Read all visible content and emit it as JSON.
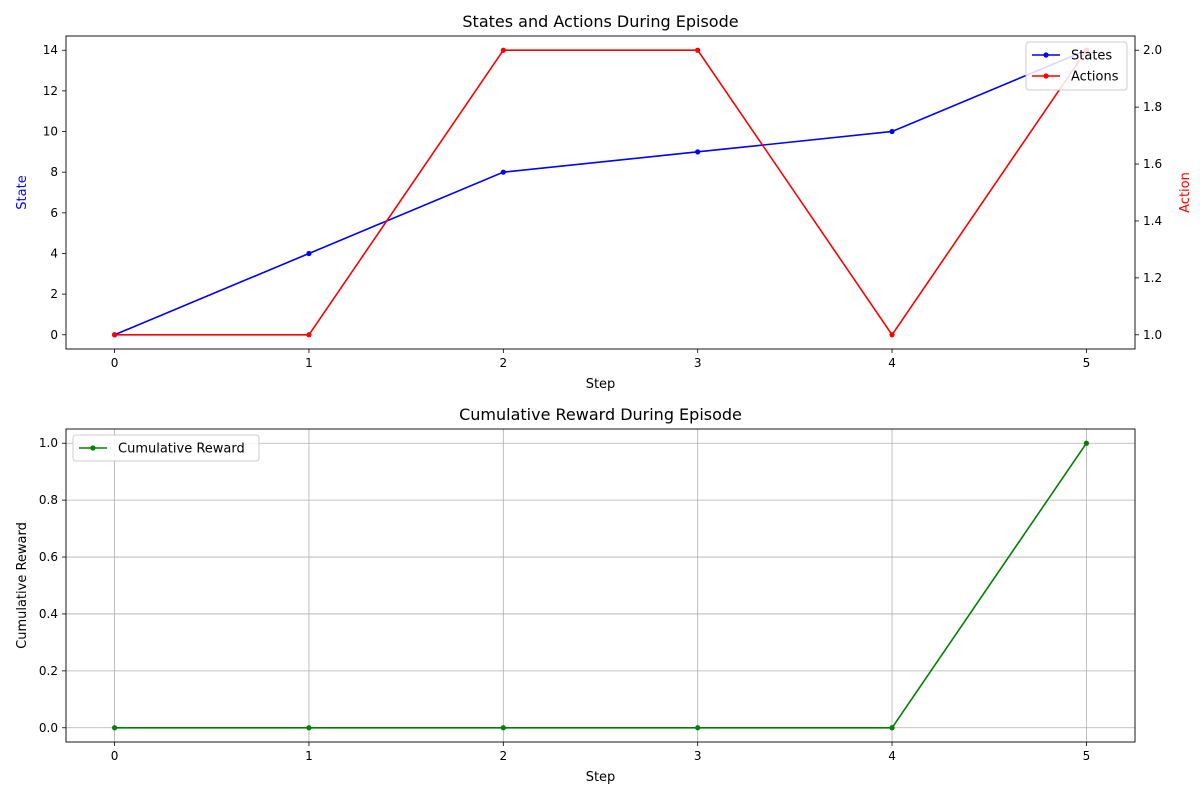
{
  "chart_data": [
    {
      "id": "states-actions",
      "type": "line",
      "title": "States and Actions During Episode",
      "xlabel": "Step",
      "ylabel": "State",
      "ylabel_right": "Action",
      "x": [
        0,
        1,
        2,
        3,
        4,
        5
      ],
      "xlim": [
        -0.25,
        5.25
      ],
      "xticks": [
        0,
        1,
        2,
        3,
        4,
        5
      ],
      "ylim": [
        -0.7,
        14.7
      ],
      "yticks": [
        0,
        2,
        4,
        6,
        8,
        10,
        12,
        14
      ],
      "ylim_right": [
        0.95,
        2.05
      ],
      "yticks_right": [
        1.0,
        1.2,
        1.4,
        1.6,
        1.8,
        2.0
      ],
      "grid": false,
      "legend_position": "top-right",
      "series": [
        {
          "name": "States",
          "axis": "left",
          "color": "#0000ff",
          "values": [
            0,
            4,
            8,
            9,
            10,
            14
          ]
        },
        {
          "name": "Actions",
          "axis": "right",
          "color": "#ff0000",
          "values": [
            1,
            1,
            2,
            2,
            1,
            2
          ]
        }
      ],
      "colors": {
        "ylabel": "#0000ff",
        "ylabel_right": "#ff0000"
      }
    },
    {
      "id": "cumulative-reward",
      "type": "line",
      "title": "Cumulative Reward During Episode",
      "xlabel": "Step",
      "ylabel": "Cumulative Reward",
      "x": [
        0,
        1,
        2,
        3,
        4,
        5
      ],
      "xlim": [
        -0.25,
        5.25
      ],
      "xticks": [
        0,
        1,
        2,
        3,
        4,
        5
      ],
      "ylim": [
        -0.05,
        1.05
      ],
      "yticks": [
        0.0,
        0.2,
        0.4,
        0.6,
        0.8,
        1.0
      ],
      "grid": true,
      "legend_position": "top-left",
      "series": [
        {
          "name": "Cumulative Reward",
          "axis": "left",
          "color": "#008000",
          "values": [
            0,
            0,
            0,
            0,
            0,
            1
          ]
        }
      ],
      "colors": {
        "ylabel": "#000000"
      }
    }
  ]
}
